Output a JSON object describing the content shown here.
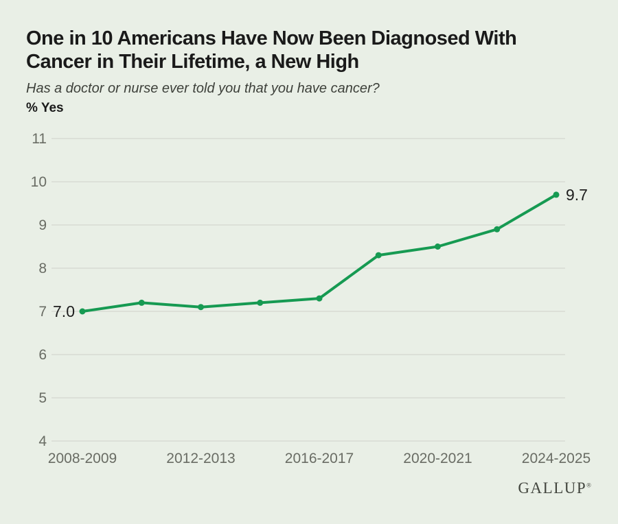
{
  "page": {
    "background_color": "#e9efe6"
  },
  "header": {
    "title": "One in 10 Americans Have Now Been Diagnosed With\nCancer in Their Lifetime, a New High",
    "subtitle": "Has a doctor or nurse ever told you that you have cancer?",
    "metric_label": "% Yes"
  },
  "chart_data": {
    "type": "line",
    "title": "One in 10 Americans Have Now Been Diagnosed With Cancer in Their Lifetime, a New High",
    "subtitle": "Has a doctor or nurse ever told you that you have cancer?",
    "ylabel": "% Yes",
    "ylim": [
      4,
      11
    ],
    "y_ticks": [
      11,
      10,
      9,
      8,
      7,
      6,
      5,
      4
    ],
    "num_points": 9,
    "x_ticks": [
      {
        "index": 0,
        "label": "2008-2009"
      },
      {
        "index": 2,
        "label": "2012-2013"
      },
      {
        "index": 4,
        "label": "2016-2017"
      },
      {
        "index": 6,
        "label": "2020-2021"
      },
      {
        "index": 8,
        "label": "2024-2025"
      }
    ],
    "series": [
      {
        "name": "% Yes",
        "values": [
          7.0,
          7.2,
          7.1,
          7.2,
          7.3,
          8.3,
          8.5,
          8.9,
          9.7
        ]
      }
    ],
    "point_labels": {
      "first": "7.0",
      "last": "9.7"
    },
    "legend": "none",
    "grid": "horizontal",
    "line_color": "#169a52",
    "grid_color": "#d4d8d0",
    "axis_label_color": "#696c64",
    "value_label_color": "#1e1e1e"
  },
  "footer": {
    "brand": "GALLUP",
    "registered_mark": "®"
  }
}
